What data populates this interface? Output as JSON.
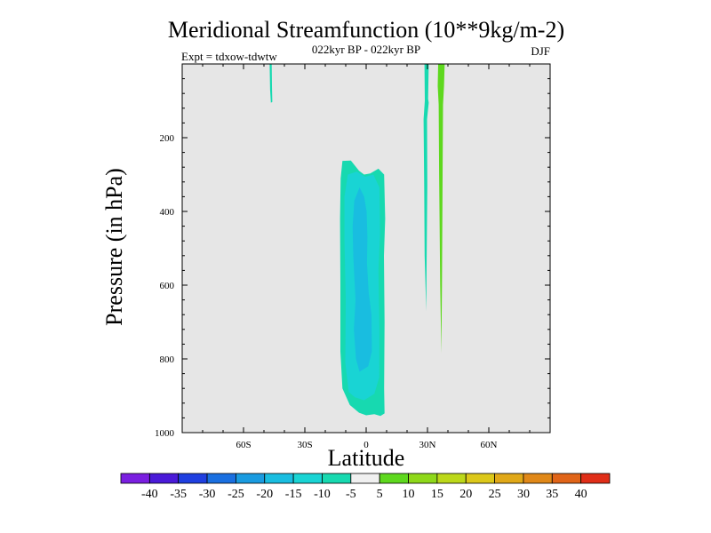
{
  "chart_data": {
    "type": "contour",
    "title": "Meridional Streamfunction (10**9kg/m-2)",
    "subtitle_left": "Expt = tdxow-tdwtw",
    "subtitle_center": "022kyr BP - 022kyr BP",
    "subtitle_right": "DJF",
    "xlabel": "Latitude",
    "ylabel": "Pressure (in hPa)",
    "xlim": [
      -90,
      90
    ],
    "ylim": [
      1000,
      0
    ],
    "x_ticks": [
      -60,
      -30,
      0,
      30,
      60
    ],
    "x_tick_labels": [
      "60S",
      "30S",
      "0",
      "30N",
      "60N"
    ],
    "y_ticks": [
      200,
      400,
      600,
      800,
      1000
    ],
    "y_tick_labels": [
      "200",
      "400",
      "600",
      "800",
      "1000"
    ],
    "missing_color": "#e6e6e6",
    "colorbar": {
      "levels": [
        -40,
        -35,
        -30,
        -25,
        -20,
        -15,
        -10,
        -5,
        5,
        10,
        15,
        20,
        25,
        30,
        35,
        40
      ],
      "labels": [
        "-40",
        "-35",
        "-30",
        "-25",
        "-20",
        "-15",
        "-10",
        "-5",
        "5",
        "10",
        "15",
        "20",
        "25",
        "30",
        "35",
        "40"
      ],
      "colors": [
        "#7a1fe0",
        "#4a1ad8",
        "#1f3fe0",
        "#1a6fe0",
        "#1a9be0",
        "#19bde0",
        "#19d4d4",
        "#17d9b0",
        "#f0f0f0",
        "#5ed81e",
        "#8ed81a",
        "#bcd81a",
        "#dcc81a",
        "#e0a818",
        "#e08818",
        "#e06418",
        "#e02e18"
      ]
    },
    "features": [
      {
        "name": "deep tropical cell",
        "lat_range": [
          -13,
          9
        ],
        "pressure_range": [
          262,
          955
        ],
        "values": [
          "-10 to -5",
          "-15 to -10",
          "-20 to -15"
        ]
      },
      {
        "name": "southern thin band",
        "lat_range": [
          -47,
          -46
        ],
        "pressure_range": [
          0,
          105
        ],
        "value": "-10 to -5"
      },
      {
        "name": "northern negative band",
        "lat": 29,
        "pressure_range": [
          0,
          670
        ],
        "value": "-10 to -5"
      },
      {
        "name": "northern positive band",
        "lat": 36,
        "pressure_range": [
          0,
          785
        ],
        "value": "5 to 10"
      }
    ]
  }
}
